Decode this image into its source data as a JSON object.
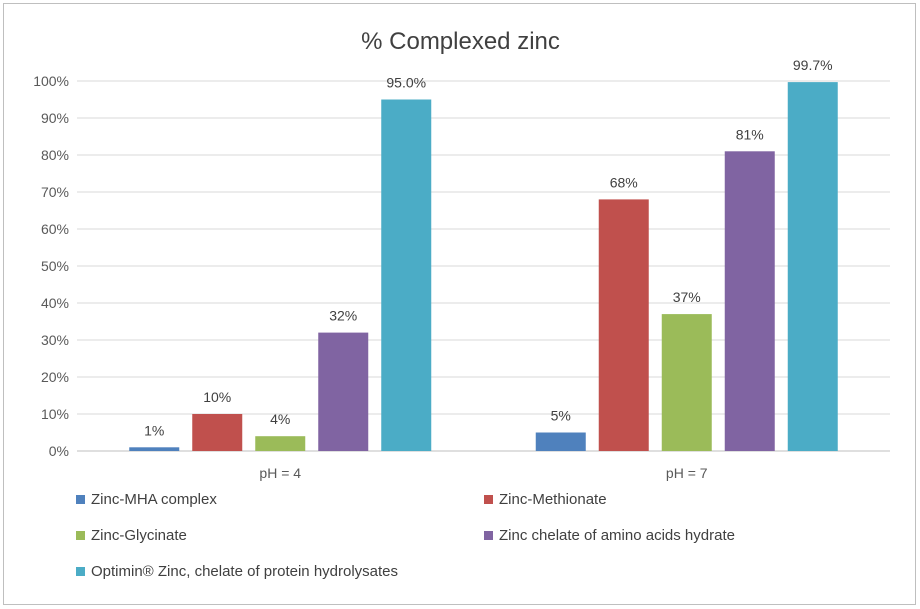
{
  "chart_data": {
    "type": "bar",
    "title": "% Complexed zinc",
    "categories": [
      "pH = 4",
      "pH = 7"
    ],
    "ylim": [
      0,
      100
    ],
    "yticks": [
      "0%",
      "10%",
      "20%",
      "30%",
      "40%",
      "50%",
      "60%",
      "70%",
      "80%",
      "90%",
      "100%"
    ],
    "grid": true,
    "legend_position": "bottom",
    "series": [
      {
        "name": "Zinc-MHA complex",
        "color": "#4f81bd",
        "values": [
          1,
          5
        ],
        "labels": [
          "1%",
          "5%"
        ]
      },
      {
        "name": "Zinc-Methionate",
        "color": "#c0504d",
        "values": [
          10,
          68
        ],
        "labels": [
          "10%",
          "68%"
        ]
      },
      {
        "name": "Zinc-Glycinate",
        "color": "#9bbb59",
        "values": [
          4,
          37
        ],
        "labels": [
          "4%",
          "37%"
        ]
      },
      {
        "name": "Zinc chelate of amino acids hydrate",
        "color": "#8064a2",
        "values": [
          32,
          81
        ],
        "labels": [
          "32%",
          "81%"
        ]
      },
      {
        "name": "Optimin® Zinc, chelate of protein hydrolysates",
        "color": "#4bacc6",
        "values": [
          95.0,
          99.7
        ],
        "labels": [
          "95.0%",
          "99.7%"
        ]
      }
    ]
  }
}
